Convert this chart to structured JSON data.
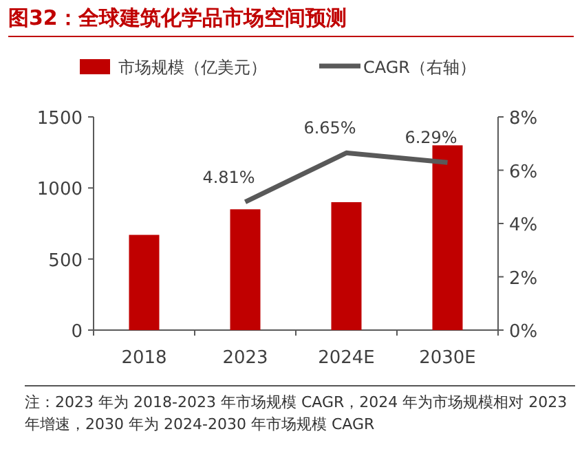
{
  "chart_data": {
    "type": "bar",
    "title": "图32：全球建筑化学品市场空间预测",
    "categories": [
      "2018",
      "2023",
      "2024E",
      "2030E"
    ],
    "series": [
      {
        "name": "市场规模（亿美元）",
        "color": "#c00000",
        "values": [
          670,
          850,
          900,
          1300
        ]
      },
      {
        "name": "CAGR（右轴）",
        "type": "line",
        "axis": "y2",
        "color": "#595959",
        "values": [
          null,
          4.81,
          6.65,
          6.29
        ],
        "value_labels": [
          null,
          "4.81%",
          "6.65%",
          "6.29%"
        ]
      }
    ],
    "ylim": [
      0,
      1500
    ],
    "yticks": [
      0,
      500,
      1000,
      1500
    ],
    "y2lim": [
      0,
      8
    ],
    "y2ticks": [
      {
        "value": 0,
        "label": "0%"
      },
      {
        "value": 2,
        "label": "2%"
      },
      {
        "value": 4,
        "label": "4%"
      },
      {
        "value": 6,
        "label": "6%"
      },
      {
        "value": 8,
        "label": "8%"
      }
    ],
    "legend": "top",
    "marker": "none",
    "line_style": "solid",
    "annotations": [
      "注：2023 年为 2018-2023 年市场规模 CAGR，2024 年为市场规模相对 2023 年增速，2030 年为 2024-2030 年市场规模 CAGR"
    ]
  }
}
